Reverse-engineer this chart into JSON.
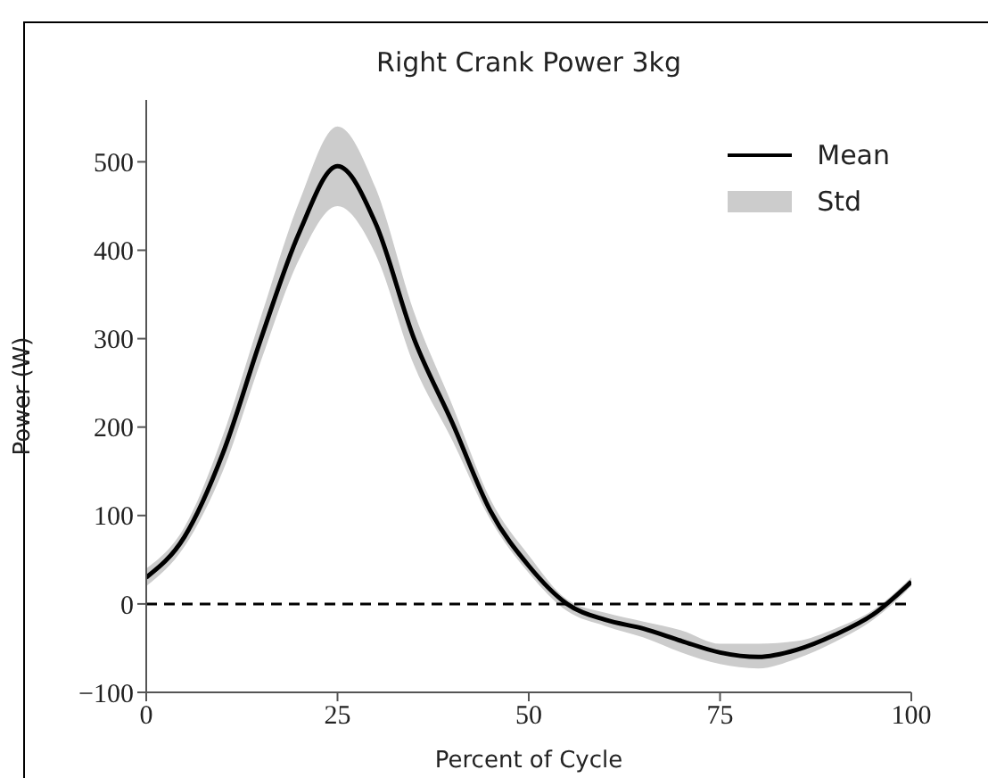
{
  "chart_data": {
    "type": "line",
    "title": "Right Crank Power 3kg",
    "xlabel": "Percent of Cycle",
    "ylabel": "Power (W)",
    "x": [
      0,
      5,
      10,
      15,
      20,
      25,
      30,
      35,
      40,
      45,
      50,
      55,
      60,
      65,
      70,
      75,
      80,
      85,
      90,
      95,
      100
    ],
    "series": [
      {
        "name": "Mean",
        "color": "#000000",
        "values": [
          30,
          76,
          170,
          300,
          420,
          495,
          430,
          300,
          205,
          105,
          43,
          0,
          -18,
          -28,
          -42,
          -55,
          -60,
          -52,
          -35,
          -12,
          25
        ],
        "lower": [
          20,
          65,
          150,
          275,
          390,
          450,
          395,
          270,
          185,
          95,
          35,
          -8,
          -25,
          -38,
          -55,
          -68,
          -73,
          -62,
          -43,
          -18,
          20
        ],
        "upper": [
          40,
          87,
          190,
          325,
          455,
          540,
          470,
          330,
          225,
          118,
          55,
          5,
          -10,
          -20,
          -30,
          -45,
          -45,
          -42,
          -28,
          -7,
          30
        ]
      }
    ],
    "annotations": [
      "Std"
    ],
    "xlim": [
      0,
      100
    ],
    "xticks": [
      0,
      25,
      50,
      75,
      100
    ],
    "ylim": [
      -100,
      570
    ],
    "yticks": [
      -100,
      0,
      100,
      200,
      300,
      400,
      500
    ],
    "ref_lines": [
      {
        "axis": "y",
        "value": 0,
        "color": "#000000",
        "line_style": "dashed"
      }
    ],
    "legend": "top right",
    "grid": false
  }
}
